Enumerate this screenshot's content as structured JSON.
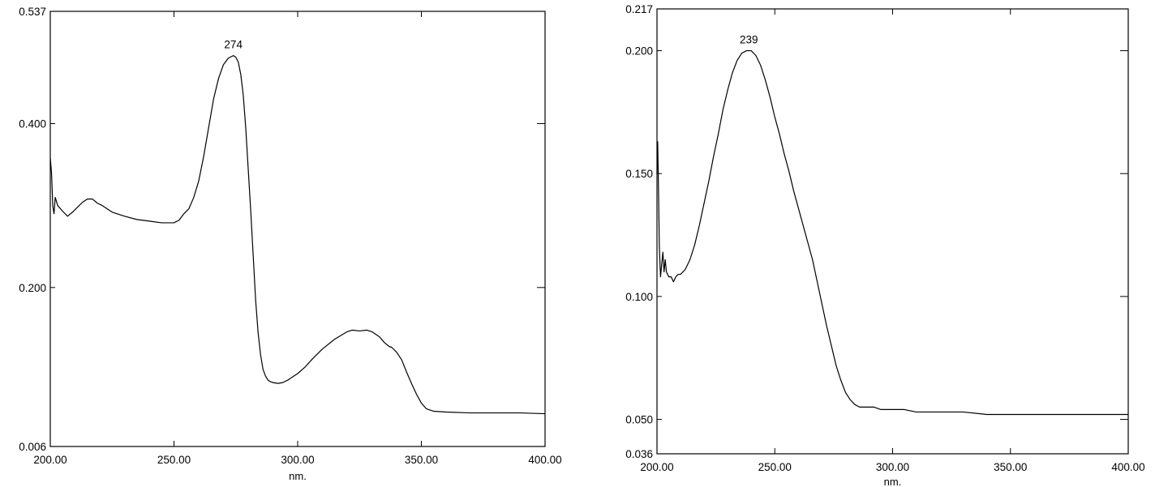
{
  "chart_data": [
    {
      "type": "line",
      "xlabel": "nm.",
      "xlim": [
        200,
        400
      ],
      "ylim": [
        0.006,
        0.537
      ],
      "x_ticks": [
        200,
        250,
        300,
        350,
        400
      ],
      "x_tick_labels": [
        "200.00",
        "250.00",
        "300.00",
        "350.00",
        "400.00"
      ],
      "y_ticks": [
        0.006,
        0.2,
        0.4,
        0.537
      ],
      "y_tick_labels": [
        "0.006",
        "0.200",
        "0.400",
        "0.537"
      ],
      "grid": false,
      "annotations": [
        {
          "x": 274,
          "y": 0.483,
          "text": "274"
        }
      ],
      "series": [
        {
          "x": [
            200,
            200.5,
            201,
            201.5,
            202,
            203,
            205,
            207,
            209,
            211,
            213,
            215,
            217,
            219,
            221,
            223,
            225,
            230,
            235,
            240,
            245,
            250,
            252,
            254,
            256,
            258,
            260,
            262,
            264,
            266,
            268,
            270,
            272,
            274,
            275,
            276,
            277,
            278,
            279,
            280,
            281,
            282,
            283,
            284,
            285,
            286,
            287,
            288,
            289,
            290,
            292,
            294,
            296,
            298,
            300,
            303,
            306,
            310,
            315,
            320,
            322,
            325,
            328,
            330,
            333,
            335,
            337,
            338,
            340,
            342,
            344,
            346,
            348,
            350,
            352,
            355,
            360,
            370,
            380,
            390,
            400
          ],
          "y": [
            0.358,
            0.34,
            0.3,
            0.29,
            0.31,
            0.3,
            0.293,
            0.287,
            0.292,
            0.298,
            0.304,
            0.308,
            0.308,
            0.303,
            0.3,
            0.296,
            0.292,
            0.287,
            0.283,
            0.281,
            0.279,
            0.279,
            0.282,
            0.29,
            0.296,
            0.31,
            0.33,
            0.36,
            0.395,
            0.43,
            0.455,
            0.472,
            0.48,
            0.483,
            0.481,
            0.475,
            0.46,
            0.435,
            0.395,
            0.345,
            0.295,
            0.24,
            0.185,
            0.145,
            0.118,
            0.1,
            0.092,
            0.087,
            0.085,
            0.084,
            0.083,
            0.084,
            0.087,
            0.091,
            0.095,
            0.103,
            0.113,
            0.125,
            0.137,
            0.146,
            0.148,
            0.147,
            0.148,
            0.146,
            0.14,
            0.133,
            0.128,
            0.127,
            0.121,
            0.112,
            0.097,
            0.083,
            0.07,
            0.059,
            0.052,
            0.049,
            0.048,
            0.047,
            0.047,
            0.047,
            0.046
          ]
        }
      ]
    },
    {
      "type": "line",
      "xlabel": "nm.",
      "xlim": [
        200,
        400
      ],
      "ylim": [
        0.036,
        0.217
      ],
      "x_ticks": [
        200,
        250,
        300,
        350,
        400
      ],
      "x_tick_labels": [
        "200.00",
        "250.00",
        "300.00",
        "350.00",
        "400.00"
      ],
      "y_ticks": [
        0.036,
        0.05,
        0.1,
        0.15,
        0.2,
        0.217
      ],
      "y_tick_labels": [
        "0.036",
        "0.050",
        "0.100",
        "0.150",
        "0.200",
        "0.217"
      ],
      "grid": false,
      "annotations": [
        {
          "x": 239,
          "y": 0.2,
          "text": "239"
        }
      ],
      "series": [
        {
          "x": [
            200,
            200.3,
            200.7,
            201,
            201.5,
            202,
            202.5,
            203,
            203.5,
            204,
            205,
            206,
            207,
            208,
            209,
            210,
            212,
            214,
            216,
            218,
            220,
            222,
            224,
            226,
            228,
            230,
            232,
            234,
            236,
            238,
            239,
            240,
            242,
            244,
            246,
            248,
            250,
            252,
            254,
            256,
            258,
            260,
            262,
            264,
            266,
            268,
            270,
            272,
            274,
            276,
            278,
            280,
            282,
            284,
            286,
            288,
            290,
            292,
            295,
            300,
            305,
            310,
            320,
            330,
            340,
            350,
            360,
            370,
            380,
            390,
            400
          ],
          "y": [
            0.15,
            0.163,
            0.14,
            0.12,
            0.108,
            0.113,
            0.118,
            0.11,
            0.115,
            0.11,
            0.108,
            0.108,
            0.106,
            0.108,
            0.109,
            0.109,
            0.111,
            0.115,
            0.121,
            0.129,
            0.138,
            0.147,
            0.157,
            0.166,
            0.176,
            0.184,
            0.191,
            0.196,
            0.199,
            0.2,
            0.2,
            0.2,
            0.198,
            0.194,
            0.188,
            0.181,
            0.173,
            0.166,
            0.158,
            0.151,
            0.143,
            0.136,
            0.129,
            0.122,
            0.115,
            0.106,
            0.097,
            0.088,
            0.08,
            0.072,
            0.066,
            0.061,
            0.058,
            0.056,
            0.055,
            0.055,
            0.055,
            0.055,
            0.054,
            0.054,
            0.054,
            0.053,
            0.053,
            0.053,
            0.052,
            0.052,
            0.052,
            0.052,
            0.052,
            0.052,
            0.052
          ]
        }
      ]
    }
  ]
}
